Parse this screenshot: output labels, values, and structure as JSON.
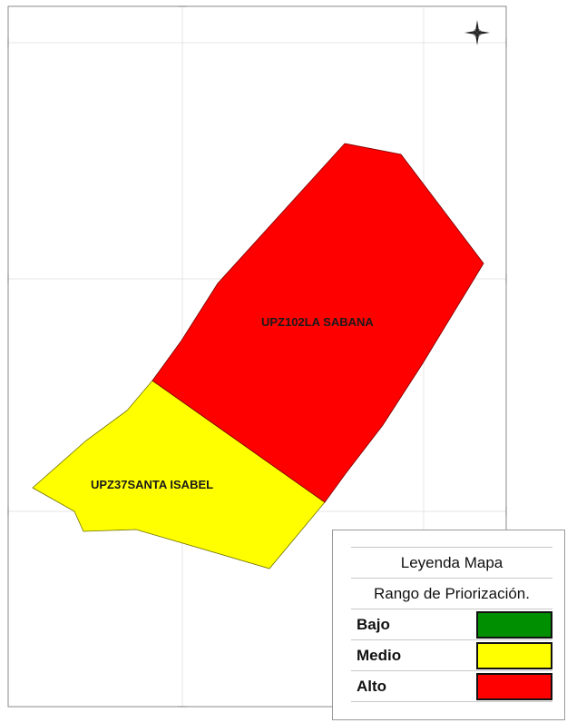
{
  "map": {
    "regions": [
      {
        "name": "UPZ102LA SABANA",
        "priority": "Alto",
        "color": "#ff0000"
      },
      {
        "name": "UPZ37SANTA ISABEL",
        "priority": "Medio",
        "color": "#ffff00"
      }
    ],
    "north_arrow_icon": "compass-rose-icon"
  },
  "legend": {
    "title": "Leyenda Mapa",
    "subtitle": "Rango de Priorización.",
    "items": [
      {
        "label": "Bajo",
        "color": "#008f00"
      },
      {
        "label": "Medio",
        "color": "#ffff00"
      },
      {
        "label": "Alto",
        "color": "#ff0000"
      }
    ]
  }
}
